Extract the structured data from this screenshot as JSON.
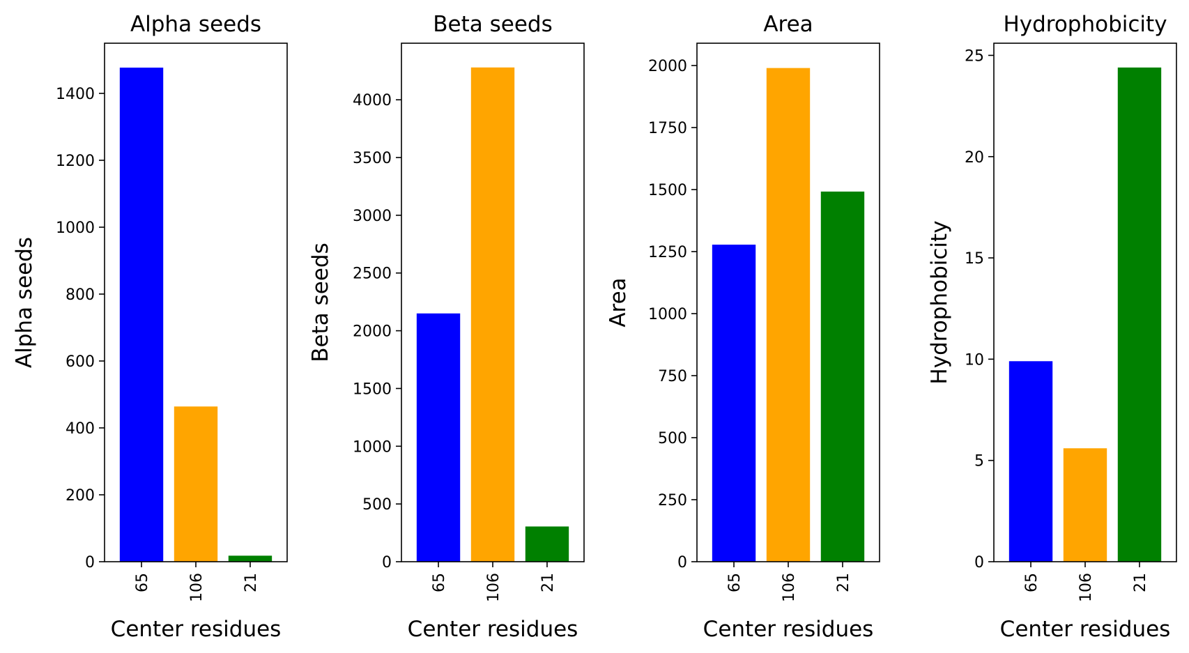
{
  "chart_data": [
    {
      "type": "bar",
      "title": "Alpha seeds",
      "xlabel": "Center residues",
      "ylabel": "Alpha seeds",
      "categories": [
        "65",
        "106",
        "21"
      ],
      "values": [
        1477,
        464,
        18
      ],
      "colors": [
        "#0000ff",
        "#ffa500",
        "#008000"
      ],
      "ylim": [
        0,
        1550
      ],
      "yticks": [
        0,
        200,
        400,
        600,
        800,
        1000,
        1200,
        1400
      ],
      "grid": false
    },
    {
      "type": "bar",
      "title": "Beta seeds",
      "xlabel": "Center residues",
      "ylabel": "Beta seeds",
      "categories": [
        "65",
        "106",
        "21"
      ],
      "values": [
        2150,
        4280,
        305
      ],
      "colors": [
        "#0000ff",
        "#ffa500",
        "#008000"
      ],
      "ylim": [
        0,
        4490
      ],
      "yticks": [
        0,
        500,
        1000,
        1500,
        2000,
        2500,
        3000,
        3500,
        4000
      ],
      "grid": false
    },
    {
      "type": "bar",
      "title": "Area",
      "xlabel": "Center residues",
      "ylabel": "Area",
      "categories": [
        "65",
        "106",
        "21"
      ],
      "values": [
        1278,
        1990,
        1492
      ],
      "colors": [
        "#0000ff",
        "#ffa500",
        "#008000"
      ],
      "ylim": [
        0,
        2090
      ],
      "yticks": [
        0,
        250,
        500,
        750,
        1000,
        1250,
        1500,
        1750,
        2000
      ],
      "grid": false
    },
    {
      "type": "bar",
      "title": "Hydrophobicity",
      "xlabel": "Center residues",
      "ylabel": "Hydrophobicity",
      "categories": [
        "65",
        "106",
        "21"
      ],
      "values": [
        9.9,
        5.6,
        24.4
      ],
      "colors": [
        "#0000ff",
        "#ffa500",
        "#008000"
      ],
      "ylim": [
        0,
        25.6
      ],
      "yticks": [
        0,
        5,
        10,
        15,
        20,
        25
      ],
      "grid": false
    }
  ]
}
